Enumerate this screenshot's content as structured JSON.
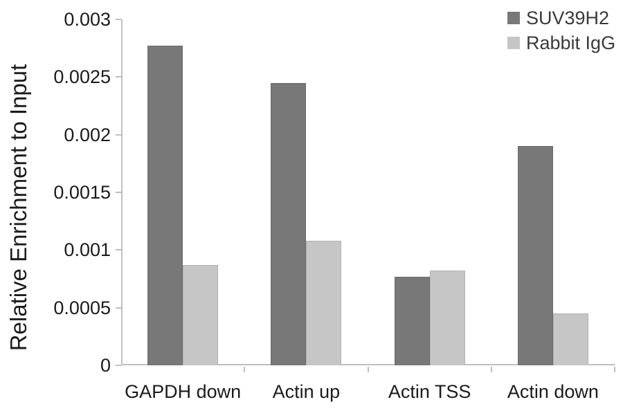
{
  "chart_data": {
    "type": "bar",
    "title": "",
    "xlabel": "",
    "ylabel": "Relative Enrichment to Input",
    "categories": [
      "GAPDH down",
      "Actin up",
      "Actin TSS",
      "Actin down"
    ],
    "series": [
      {
        "name": "SUV39H2",
        "color": "#787878",
        "border_color": "#6b6b6b",
        "values": [
          0.00277,
          0.00245,
          0.00077,
          0.0019
        ]
      },
      {
        "name": "Rabbit IgG",
        "color": "#c6c6c6",
        "border_color": "#b2b2b2",
        "values": [
          0.00087,
          0.00108,
          0.00082,
          0.00045
        ]
      }
    ],
    "ylim": [
      0,
      0.003
    ],
    "y_ticks": [
      {
        "value": 0.003,
        "label": "0.003"
      },
      {
        "value": 0.0025,
        "label": "0.0025"
      },
      {
        "value": 0.002,
        "label": "0.002"
      },
      {
        "value": 0.0015,
        "label": "0.0015"
      },
      {
        "value": 0.001,
        "label": "0.001"
      },
      {
        "value": 0.0005,
        "label": "0.0005"
      },
      {
        "value": 0,
        "label": "0"
      }
    ],
    "grid": "off",
    "legend_position": "top-right",
    "axis_color": "#bfbfbf",
    "text_color": "#1b1b1b"
  }
}
